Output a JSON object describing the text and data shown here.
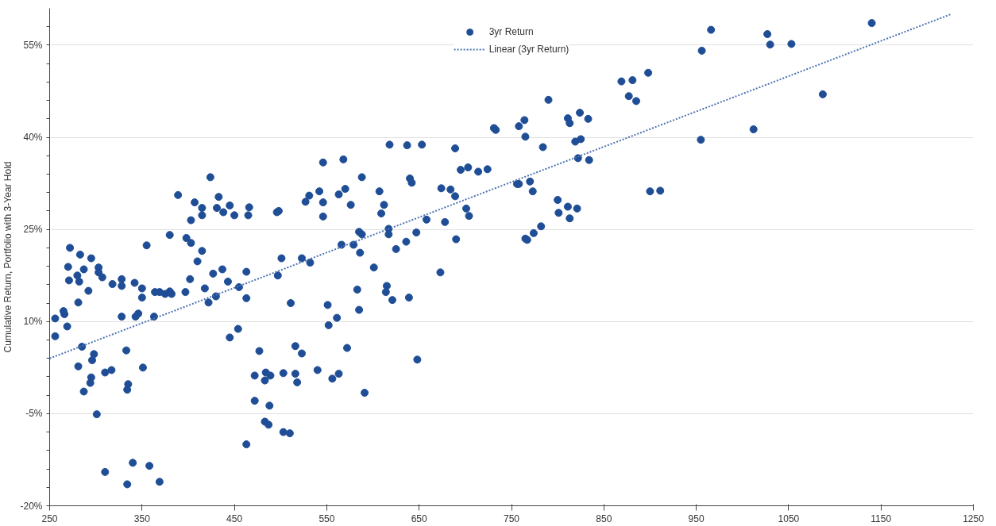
{
  "chart_data": {
    "type": "scatter",
    "ylabel": "Cumulative Return, Portfolio with 3-Year Hold",
    "xlim": [
      250,
      1250
    ],
    "ylim": [
      -20,
      61
    ],
    "xticks": [
      250,
      350,
      450,
      550,
      650,
      750,
      850,
      950,
      1050,
      1150,
      1250
    ],
    "yticks": [
      {
        "value": -20,
        "label": "-20%"
      },
      {
        "value": -17,
        "label": null
      },
      {
        "value": -14,
        "label": null
      },
      {
        "value": -11,
        "label": null
      },
      {
        "value": -8,
        "label": null
      },
      {
        "value": -5,
        "label": "-5%"
      },
      {
        "value": -2,
        "label": null
      },
      {
        "value": 1,
        "label": null
      },
      {
        "value": 4,
        "label": null
      },
      {
        "value": 7,
        "label": null
      },
      {
        "value": 10,
        "label": "10%"
      },
      {
        "value": 13,
        "label": null
      },
      {
        "value": 16,
        "label": null
      },
      {
        "value": 19,
        "label": null
      },
      {
        "value": 22,
        "label": null
      },
      {
        "value": 25,
        "label": "25%"
      },
      {
        "value": 28,
        "label": null
      },
      {
        "value": 31,
        "label": null
      },
      {
        "value": 34,
        "label": null
      },
      {
        "value": 37,
        "label": null
      },
      {
        "value": 40,
        "label": "40%"
      },
      {
        "value": 43,
        "label": null
      },
      {
        "value": 46,
        "label": null
      },
      {
        "value": 49,
        "label": null
      },
      {
        "value": 52,
        "label": null
      },
      {
        "value": 55,
        "label": "55%"
      },
      {
        "value": 58,
        "label": null
      }
    ],
    "grid": "y",
    "legend": "top",
    "marker": "circle",
    "series": [
      {
        "name": "3yr Return",
        "color": "#1f4e96",
        "x": [
          424,
          389,
          407,
          415,
          415,
          433,
          431,
          438,
          445,
          450,
          466,
          465,
          496,
          498,
          403,
          380,
          355,
          272,
          283,
          295,
          270,
          287,
          303,
          303,
          307,
          280,
          282,
          271,
          292,
          281,
          318,
          328,
          328,
          342,
          350,
          350,
          364,
          369,
          375,
          380,
          382,
          397,
          402,
          398,
          403,
          410,
          415,
          427,
          437,
          418,
          422,
          430,
          443,
          455,
          463,
          463,
          501,
          497,
          328,
          343,
          346,
          363,
          265,
          266,
          256,
          269,
          256,
          285,
          333,
          445,
          454,
          281,
          298,
          296,
          351,
          477,
          310,
          317,
          295,
          294,
          287,
          335,
          334,
          472,
          484,
          489,
          483,
          503,
          472,
          488,
          301,
          483,
          487,
          503,
          463,
          310,
          340,
          358,
          334,
          369,
          618,
          637,
          653,
          689,
          546,
          568,
          588,
          695,
          703,
          714,
          724,
          640,
          642,
          527,
          531,
          542,
          546,
          546,
          563,
          570,
          576,
          607,
          612,
          609,
          674,
          684,
          689,
          701,
          704,
          658,
          678,
          756,
          585,
          588,
          617,
          617,
          647,
          566,
          579,
          586,
          625,
          636,
          690,
          523,
          532,
          601,
          673,
          583,
          615,
          614,
          621,
          639,
          585,
          511,
          551,
          561,
          552,
          516,
          523,
          572,
          648,
          516,
          518,
          540,
          556,
          563,
          591,
          510,
          966,
          956,
          898,
          869,
          881,
          877,
          885,
          790,
          764,
          758,
          765,
          733,
          731,
          811,
          813,
          824,
          833,
          784,
          819,
          825,
          822,
          834,
          955,
          758,
          770,
          773,
          900,
          911,
          800,
          811,
          821,
          801,
          813,
          782,
          774,
          765,
          767,
          1140,
          1027,
          1030,
          1053,
          1087,
          1012
        ],
        "values": [
          33.5,
          30.6,
          29.4,
          28.5,
          27.3,
          30.3,
          28.5,
          27.8,
          28.9,
          27.3,
          28.6,
          27.3,
          27.8,
          28.0,
          26.5,
          24.1,
          22.4,
          22.0,
          20.9,
          20.3,
          18.9,
          18.5,
          18.8,
          18.0,
          17.2,
          17.5,
          16.5,
          16.7,
          15.0,
          13.1,
          16.1,
          16.9,
          15.8,
          16.3,
          15.4,
          13.9,
          14.8,
          14.8,
          14.5,
          14.9,
          14.5,
          14.8,
          16.9,
          23.6,
          22.8,
          19.8,
          21.5,
          17.8,
          18.5,
          15.4,
          13.1,
          14.1,
          16.5,
          15.6,
          18.1,
          13.8,
          20.3,
          17.5,
          10.8,
          10.8,
          11.3,
          10.8,
          11.7,
          11.2,
          10.5,
          9.2,
          7.6,
          5.9,
          5.3,
          7.4,
          8.8,
          2.7,
          4.7,
          3.7,
          2.5,
          5.2,
          1.7,
          2.1,
          0.9,
          0.0,
          -1.4,
          -0.2,
          -1.1,
          1.2,
          1.7,
          1.2,
          0.4,
          1.6,
          -2.9,
          -3.7,
          -5.1,
          -6.3,
          -6.8,
          -8.0,
          -10.0,
          -14.5,
          -13.0,
          -13.5,
          -16.5,
          -16.1,
          38.8,
          38.7,
          38.8,
          38.2,
          35.9,
          36.4,
          33.5,
          34.7,
          35.1,
          34.4,
          34.8,
          33.3,
          32.6,
          29.5,
          30.5,
          31.2,
          29.4,
          27.1,
          30.7,
          31.6,
          29.0,
          31.2,
          29.0,
          27.6,
          31.7,
          31.5,
          30.4,
          28.4,
          27.2,
          26.6,
          26.2,
          32.4,
          24.6,
          24.2,
          25.1,
          24.2,
          24.5,
          22.5,
          22.5,
          21.2,
          21.8,
          23.0,
          23.4,
          20.3,
          19.6,
          18.8,
          18.0,
          15.2,
          15.8,
          14.8,
          13.5,
          13.9,
          11.9,
          13.0,
          12.7,
          10.6,
          9.4,
          6.0,
          4.8,
          5.7,
          3.8,
          1.5,
          0.1,
          2.1,
          0.7,
          1.5,
          -1.6,
          -8.2,
          57.5,
          54.1,
          50.5,
          49.1,
          49.3,
          46.7,
          45.9,
          46.1,
          42.8,
          41.8,
          40.1,
          41.2,
          41.5,
          43.1,
          42.3,
          44.0,
          43.0,
          38.4,
          39.3,
          39.7,
          36.6,
          36.3,
          39.6,
          32.4,
          32.8,
          31.2,
          31.2,
          31.3,
          29.8,
          28.7,
          28.4,
          27.7,
          26.8,
          25.5,
          24.4,
          23.5,
          23.3,
          58.6,
          56.8,
          55.1,
          55.2,
          47.0,
          41.3
        ]
      },
      {
        "name": "Linear (3yr Return)",
        "type": "line",
        "color": "#4a72b0",
        "line_style": "dotted",
        "marker": "none",
        "x": [
          250,
          1225
        ],
        "values": [
          4.0,
          60.0
        ]
      }
    ]
  }
}
